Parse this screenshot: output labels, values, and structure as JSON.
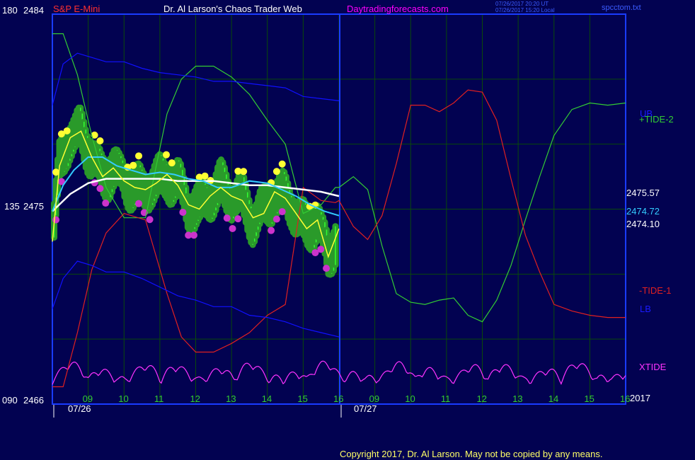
{
  "header": {
    "title_left": "S&P E-Mini",
    "title_center": "Dr. Al Larson's Chaos Trader Web",
    "site": "Daytradingforecasts.com",
    "stamp_ut": "07/26/2017 20:20 UT",
    "stamp_local": "07/26/2017 15:20 Local",
    "file": "spcctom.txt",
    "copyright": "Copyright 2017, Dr. Al Larson. May not be copied by any means."
  },
  "axis": {
    "top_left": "180",
    "top_price": "2484",
    "mid_left": "135",
    "mid_price": "2475",
    "bot_left": "090",
    "bot_price": "2466",
    "year": "2017"
  },
  "colors": {
    "background": "#020251",
    "grid": "#0a4a0a",
    "frame": "#1a3cff",
    "title_red": "#ff3030",
    "title_white": "#ffffff",
    "site_magenta": "#ff00ff",
    "tide2": "#33cc33",
    "tide1": "#e02020",
    "bands": "#1010ff",
    "xtide": "#ff33ff",
    "white_avg": "#ffffff",
    "cyan_avg": "#33ccff",
    "yellow_avg": "#ffff33"
  },
  "chart_data": {
    "type": "line",
    "title": "S&P E-Mini",
    "y_price_range": [
      2466,
      2484
    ],
    "y_angle_range": [
      "090",
      "180"
    ],
    "dates": [
      "07/26",
      "07/27"
    ],
    "x_ticks_day1": [
      "09",
      "10",
      "11",
      "12",
      "13",
      "14",
      "15",
      "16"
    ],
    "x_ticks_day2": [
      "09",
      "10",
      "11",
      "12",
      "13",
      "14",
      "15",
      "16"
    ],
    "last_values": [
      {
        "name": "white",
        "value": "2475.57"
      },
      {
        "name": "cyan",
        "value": "2474.72"
      },
      {
        "name": "yellow",
        "value": "2474.10"
      }
    ],
    "series_labels": {
      "tide2": "+TIDE-2",
      "tide1": "-TIDE-1",
      "ub": "UB",
      "lb": "LB",
      "xtide": "XTIDE"
    },
    "series": [
      {
        "name": "+TIDE-2",
        "x": [
          0,
          0.3,
          0.7,
          1.1,
          1.5,
          2.0,
          2.6,
          3.2,
          3.6,
          4.0,
          4.5,
          5.0,
          5.5,
          6.0,
          6.5,
          7.0,
          7.5,
          7.9,
          8.0,
          8.4,
          8.8,
          9.2,
          9.6,
          10.0,
          10.4,
          10.8,
          11.2,
          11.6,
          12.0,
          12.4,
          12.8,
          13.2,
          13.6,
          14.0,
          14.5,
          15.0,
          15.5,
          16.0
        ],
        "values": [
          2483.1,
          2483.1,
          2481.2,
          2478.4,
          2476.0,
          2474.6,
          2474.6,
          2479.4,
          2481.0,
          2481.6,
          2481.6,
          2481.1,
          2480.3,
          2479.1,
          2478.0,
          2474.8,
          2475.2,
          2476.0,
          2476.0,
          2476.5,
          2475.9,
          2473.3,
          2471.1,
          2470.7,
          2470.6,
          2470.8,
          2470.9,
          2470.1,
          2469.8,
          2470.8,
          2472.4,
          2474.5,
          2476.5,
          2478.4,
          2479.6,
          2479.9,
          2479.8,
          2479.9
        ]
      },
      {
        "name": "-TIDE-1",
        "x": [
          0,
          0.3,
          0.7,
          1.1,
          1.5,
          2.0,
          2.6,
          3.2,
          3.6,
          4.0,
          4.5,
          5.0,
          5.5,
          6.0,
          6.5,
          7.0,
          7.5,
          7.9,
          8.0,
          8.4,
          8.8,
          9.2,
          9.6,
          10.0,
          10.4,
          10.8,
          11.2,
          11.6,
          12.0,
          12.4,
          12.8,
          13.2,
          13.6,
          14.0,
          14.5,
          15.0,
          15.5,
          16.0
        ],
        "values": [
          2466.8,
          2466.8,
          2469.3,
          2472.2,
          2473.9,
          2474.8,
          2474.5,
          2471.1,
          2469.1,
          2468.4,
          2468.4,
          2468.8,
          2469.3,
          2470.1,
          2470.6,
          2476.0,
          2475.4,
          2475.3,
          2475.4,
          2474.2,
          2473.6,
          2474.7,
          2477.1,
          2479.8,
          2479.8,
          2479.5,
          2479.9,
          2480.5,
          2480.4,
          2479.1,
          2476.4,
          2473.8,
          2472.1,
          2470.6,
          2470.3,
          2470.1,
          2470.0,
          2470.0
        ]
      },
      {
        "name": "UB",
        "x": [
          0,
          0.3,
          0.7,
          1.1,
          1.5,
          2.0,
          2.5,
          3.0,
          3.5,
          4.0,
          4.5,
          5.0,
          5.5,
          6.0,
          6.5,
          7.0,
          7.5,
          8.0
        ],
        "values": [
          2479.8,
          2481.7,
          2482.2,
          2482.0,
          2481.8,
          2481.8,
          2481.5,
          2481.3,
          2481.2,
          2481.1,
          2480.9,
          2480.9,
          2480.8,
          2480.7,
          2480.6,
          2480.2,
          2480.1,
          2480.0
        ]
      },
      {
        "name": "LB",
        "x": [
          0,
          0.3,
          0.7,
          1.1,
          1.5,
          2.0,
          2.5,
          3.0,
          3.5,
          4.0,
          4.5,
          5.0,
          5.5,
          6.0,
          6.5,
          7.0,
          7.5,
          8.0
        ],
        "values": [
          2470.4,
          2471.8,
          2472.6,
          2472.4,
          2472.1,
          2472.1,
          2471.8,
          2471.4,
          2471.0,
          2470.8,
          2470.5,
          2470.5,
          2470.1,
          2470.0,
          2469.8,
          2469.5,
          2469.3,
          2469.1
        ]
      },
      {
        "name": "white",
        "x": [
          0,
          0.5,
          1.0,
          1.5,
          2.0,
          2.5,
          3.0,
          3.5,
          4.0,
          4.5,
          5.0,
          5.5,
          6.0,
          6.5,
          7.0,
          7.5,
          8.0
        ],
        "values": [
          2474.9,
          2475.7,
          2476.2,
          2476.4,
          2476.4,
          2476.4,
          2476.4,
          2476.3,
          2476.3,
          2476.3,
          2476.2,
          2476.1,
          2476.1,
          2476.0,
          2475.9,
          2475.8,
          2475.6
        ]
      },
      {
        "name": "cyan",
        "x": [
          0,
          0.3,
          0.6,
          1.0,
          1.4,
          1.8,
          2.2,
          2.6,
          3.0,
          3.4,
          3.8,
          4.2,
          4.6,
          5.0,
          5.5,
          6.0,
          6.4,
          6.8,
          7.2,
          7.6,
          8.0
        ],
        "values": [
          2474.9,
          2476.1,
          2476.8,
          2477.4,
          2477.4,
          2477.0,
          2476.8,
          2476.6,
          2476.7,
          2476.6,
          2476.4,
          2476.3,
          2476.0,
          2476.0,
          2476.3,
          2476.2,
          2475.9,
          2475.6,
          2475.2,
          2474.9,
          2474.7
        ]
      },
      {
        "name": "yellow",
        "x": [
          0,
          0.2,
          0.5,
          0.8,
          1.1,
          1.4,
          1.7,
          2.0,
          2.3,
          2.6,
          2.9,
          3.2,
          3.5,
          3.8,
          4.1,
          4.4,
          4.7,
          5.0,
          5.3,
          5.6,
          5.9,
          6.2,
          6.5,
          6.8,
          7.1,
          7.4,
          7.7,
          8.0
        ],
        "values": [
          2473.5,
          2477.0,
          2478.3,
          2478.6,
          2477.4,
          2476.5,
          2476.9,
          2476.3,
          2476.0,
          2475.9,
          2476.2,
          2476.6,
          2476.1,
          2475.2,
          2475.0,
          2475.6,
          2476.0,
          2475.6,
          2475.4,
          2474.6,
          2474.8,
          2475.8,
          2475.5,
          2474.8,
          2474.1,
          2474.5,
          2472.8,
          2474.1
        ]
      }
    ],
    "xtide": {
      "name": "XTIDE",
      "x_start": 0,
      "x_end": 16
    },
    "divider_x": 8
  }
}
